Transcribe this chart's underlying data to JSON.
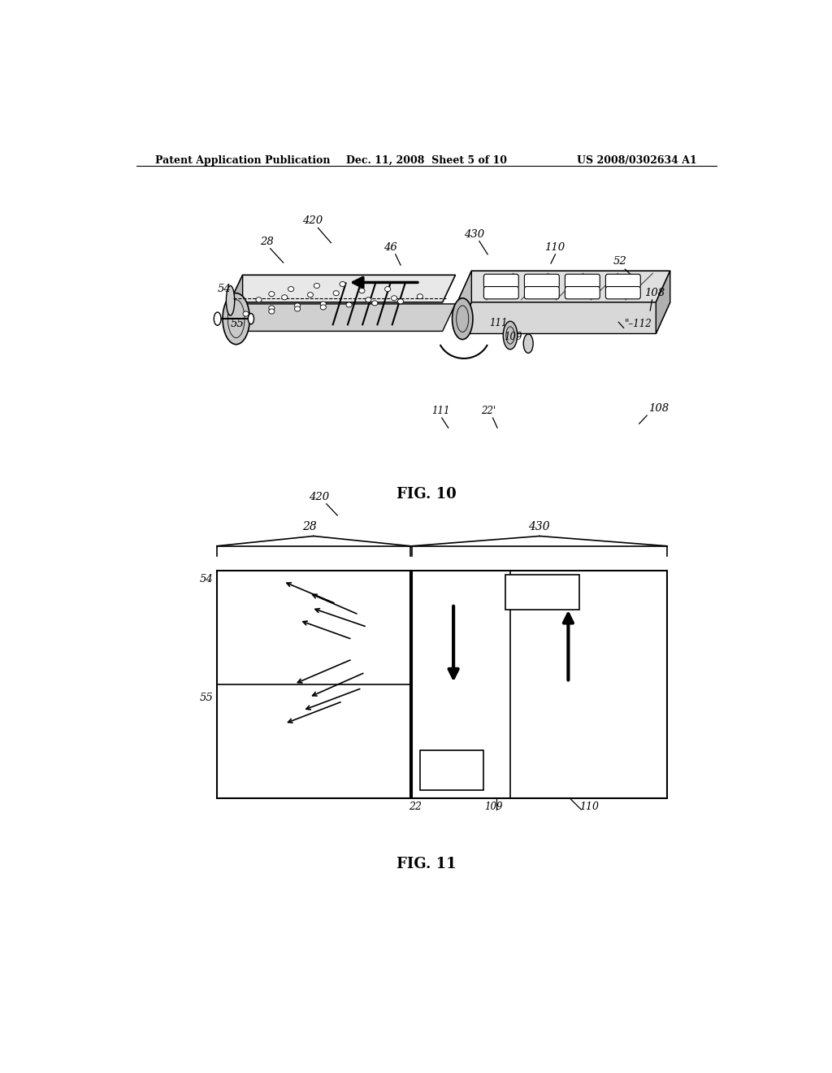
{
  "background_color": "#ffffff",
  "header_left": "Patent Application Publication",
  "header_mid": "Dec. 11, 2008  Sheet 5 of 10",
  "header_right": "US 2008/0302634 A1",
  "fig10_caption": "FIG. 10",
  "fig11_caption": "FIG. 11",
  "text_color": "#000000",
  "line_color": "#000000"
}
